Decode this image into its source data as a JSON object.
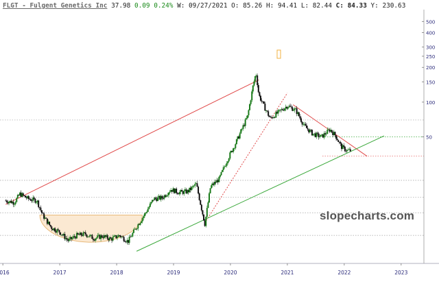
{
  "header": {
    "symbol_line": "FLGT - Fulgent Genetics Inc",
    "last": "37.98",
    "change": "0.09",
    "change_pct": "0.24%",
    "week_label": "W:",
    "week": "09/27/2021",
    "open_label": "O:",
    "open": "85.26",
    "high_label": "H:",
    "high": "94.41",
    "low_label": "L:",
    "low": "82.44",
    "close_label": "C:",
    "close": "84.33",
    "y_label": "Y:",
    "y": "230.63"
  },
  "watermark": "slopecharts.com",
  "colors": {
    "up": "#1a7a1a",
    "down": "#111111",
    "resistance": "#e04848",
    "support": "#3aa83a",
    "cup_fill": "#fbe9d2",
    "cup_stroke": "#e8b97a"
  },
  "chart_data": {
    "type": "candlestick",
    "title": "FLGT - Fulgent Genetics Inc",
    "y_scale": "log",
    "ylim": [
      4,
      600
    ],
    "xlim": [
      2015.95,
      2023.4
    ],
    "y_ticks": [
      "500",
      "400",
      "300",
      "250",
      "200",
      "150",
      "100",
      "50"
    ],
    "x_ticks": [
      "2016",
      "2017",
      "2018",
      "2019",
      "2020",
      "2021",
      "2022",
      "2023"
    ],
    "series": [
      {
        "name": "",
        "x": [
          2016.05,
          2016.2,
          2016.3,
          2016.45,
          2016.6,
          2016.7,
          2016.85,
          2017.0,
          2017.15,
          2017.3,
          2017.45,
          2017.6,
          2017.75,
          2017.9,
          2018.05,
          2018.2,
          2018.35,
          2018.5,
          2018.65,
          2018.8,
          2018.95,
          2019.1,
          2019.25,
          2019.4,
          2019.55,
          2019.65,
          2019.8,
          2019.95,
          2020.1,
          2020.2,
          2020.3,
          2020.4,
          2020.45,
          2020.5,
          2020.6,
          2020.7,
          2020.85,
          2021.0,
          2021.15,
          2021.3,
          2021.45,
          2021.6,
          2021.75,
          2021.85,
          2021.95,
          2022.05,
          2022.12
        ],
        "values": [
          14,
          13.5,
          16,
          14.5,
          14,
          10.5,
          8.2,
          7.5,
          6.3,
          7.0,
          7.2,
          6.6,
          6.9,
          6.5,
          7.0,
          6.2,
          8.3,
          10.8,
          14.5,
          14.8,
          17.5,
          16.5,
          16.8,
          19.5,
          8.8,
          18.5,
          21.5,
          32,
          45,
          58,
          75,
          140,
          180,
          115,
          90,
          72,
          82,
          93,
          85,
          62,
          53,
          50,
          58,
          51,
          41,
          38,
          38
        ]
      }
    ],
    "annotations": [
      {
        "kind": "trendline",
        "color": "red",
        "x": [
          2016.05,
          2020.5
        ],
        "y": [
          13,
          156
        ]
      },
      {
        "kind": "trendline",
        "color": "red",
        "style": "dotted",
        "x": [
          2019.55,
          2021.0
        ],
        "y": [
          9,
          120
        ]
      },
      {
        "kind": "trendline",
        "color": "red",
        "x": [
          2021.1,
          2022.4
        ],
        "y": [
          95,
          34
        ]
      },
      {
        "kind": "trendline",
        "color": "green",
        "x": [
          2018.35,
          2022.7
        ],
        "y": [
          5.1,
          51
        ]
      },
      {
        "kind": "horizontal",
        "color": "green",
        "style": "dotted",
        "y": 50
      },
      {
        "kind": "horizontal",
        "color": "red",
        "style": "dotted",
        "y": 34
      },
      {
        "kind": "horizontal",
        "color": "gray",
        "style": "dotted",
        "y": [
          70,
          21,
          15,
          11,
          7
        ]
      },
      {
        "kind": "cup",
        "x": [
          2016.65,
          2018.45
        ],
        "y": 10.5
      }
    ]
  }
}
